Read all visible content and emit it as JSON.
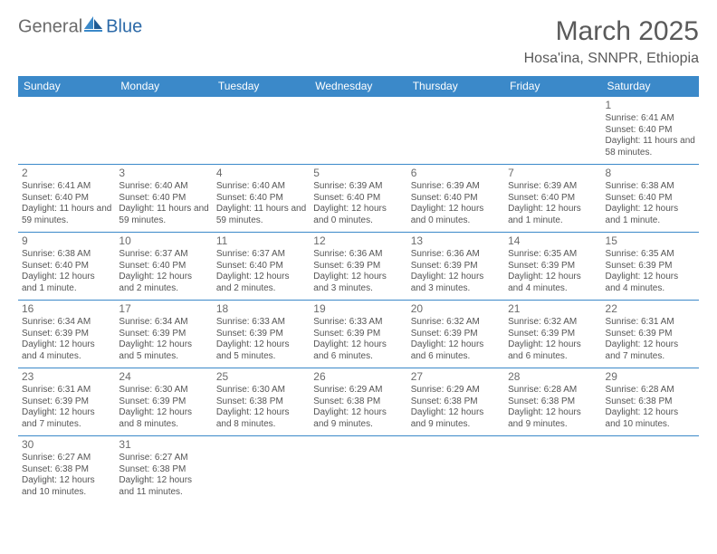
{
  "logo": {
    "text_gray": "General",
    "text_blue": "Blue"
  },
  "header": {
    "month": "March 2025",
    "location": "Hosa'ina, SNNPR, Ethiopia"
  },
  "colors": {
    "header_bg": "#3b89c9",
    "border": "#3b89c9",
    "text": "#555555"
  },
  "day_headers": [
    "Sunday",
    "Monday",
    "Tuesday",
    "Wednesday",
    "Thursday",
    "Friday",
    "Saturday"
  ],
  "weeks": [
    [
      null,
      null,
      null,
      null,
      null,
      null,
      {
        "n": "1",
        "sr": "Sunrise: 6:41 AM",
        "ss": "Sunset: 6:40 PM",
        "dl": "Daylight: 11 hours and 58 minutes."
      }
    ],
    [
      {
        "n": "2",
        "sr": "Sunrise: 6:41 AM",
        "ss": "Sunset: 6:40 PM",
        "dl": "Daylight: 11 hours and 59 minutes."
      },
      {
        "n": "3",
        "sr": "Sunrise: 6:40 AM",
        "ss": "Sunset: 6:40 PM",
        "dl": "Daylight: 11 hours and 59 minutes."
      },
      {
        "n": "4",
        "sr": "Sunrise: 6:40 AM",
        "ss": "Sunset: 6:40 PM",
        "dl": "Daylight: 11 hours and 59 minutes."
      },
      {
        "n": "5",
        "sr": "Sunrise: 6:39 AM",
        "ss": "Sunset: 6:40 PM",
        "dl": "Daylight: 12 hours and 0 minutes."
      },
      {
        "n": "6",
        "sr": "Sunrise: 6:39 AM",
        "ss": "Sunset: 6:40 PM",
        "dl": "Daylight: 12 hours and 0 minutes."
      },
      {
        "n": "7",
        "sr": "Sunrise: 6:39 AM",
        "ss": "Sunset: 6:40 PM",
        "dl": "Daylight: 12 hours and 1 minute."
      },
      {
        "n": "8",
        "sr": "Sunrise: 6:38 AM",
        "ss": "Sunset: 6:40 PM",
        "dl": "Daylight: 12 hours and 1 minute."
      }
    ],
    [
      {
        "n": "9",
        "sr": "Sunrise: 6:38 AM",
        "ss": "Sunset: 6:40 PM",
        "dl": "Daylight: 12 hours and 1 minute."
      },
      {
        "n": "10",
        "sr": "Sunrise: 6:37 AM",
        "ss": "Sunset: 6:40 PM",
        "dl": "Daylight: 12 hours and 2 minutes."
      },
      {
        "n": "11",
        "sr": "Sunrise: 6:37 AM",
        "ss": "Sunset: 6:40 PM",
        "dl": "Daylight: 12 hours and 2 minutes."
      },
      {
        "n": "12",
        "sr": "Sunrise: 6:36 AM",
        "ss": "Sunset: 6:39 PM",
        "dl": "Daylight: 12 hours and 3 minutes."
      },
      {
        "n": "13",
        "sr": "Sunrise: 6:36 AM",
        "ss": "Sunset: 6:39 PM",
        "dl": "Daylight: 12 hours and 3 minutes."
      },
      {
        "n": "14",
        "sr": "Sunrise: 6:35 AM",
        "ss": "Sunset: 6:39 PM",
        "dl": "Daylight: 12 hours and 4 minutes."
      },
      {
        "n": "15",
        "sr": "Sunrise: 6:35 AM",
        "ss": "Sunset: 6:39 PM",
        "dl": "Daylight: 12 hours and 4 minutes."
      }
    ],
    [
      {
        "n": "16",
        "sr": "Sunrise: 6:34 AM",
        "ss": "Sunset: 6:39 PM",
        "dl": "Daylight: 12 hours and 4 minutes."
      },
      {
        "n": "17",
        "sr": "Sunrise: 6:34 AM",
        "ss": "Sunset: 6:39 PM",
        "dl": "Daylight: 12 hours and 5 minutes."
      },
      {
        "n": "18",
        "sr": "Sunrise: 6:33 AM",
        "ss": "Sunset: 6:39 PM",
        "dl": "Daylight: 12 hours and 5 minutes."
      },
      {
        "n": "19",
        "sr": "Sunrise: 6:33 AM",
        "ss": "Sunset: 6:39 PM",
        "dl": "Daylight: 12 hours and 6 minutes."
      },
      {
        "n": "20",
        "sr": "Sunrise: 6:32 AM",
        "ss": "Sunset: 6:39 PM",
        "dl": "Daylight: 12 hours and 6 minutes."
      },
      {
        "n": "21",
        "sr": "Sunrise: 6:32 AM",
        "ss": "Sunset: 6:39 PM",
        "dl": "Daylight: 12 hours and 6 minutes."
      },
      {
        "n": "22",
        "sr": "Sunrise: 6:31 AM",
        "ss": "Sunset: 6:39 PM",
        "dl": "Daylight: 12 hours and 7 minutes."
      }
    ],
    [
      {
        "n": "23",
        "sr": "Sunrise: 6:31 AM",
        "ss": "Sunset: 6:39 PM",
        "dl": "Daylight: 12 hours and 7 minutes."
      },
      {
        "n": "24",
        "sr": "Sunrise: 6:30 AM",
        "ss": "Sunset: 6:39 PM",
        "dl": "Daylight: 12 hours and 8 minutes."
      },
      {
        "n": "25",
        "sr": "Sunrise: 6:30 AM",
        "ss": "Sunset: 6:38 PM",
        "dl": "Daylight: 12 hours and 8 minutes."
      },
      {
        "n": "26",
        "sr": "Sunrise: 6:29 AM",
        "ss": "Sunset: 6:38 PM",
        "dl": "Daylight: 12 hours and 9 minutes."
      },
      {
        "n": "27",
        "sr": "Sunrise: 6:29 AM",
        "ss": "Sunset: 6:38 PM",
        "dl": "Daylight: 12 hours and 9 minutes."
      },
      {
        "n": "28",
        "sr": "Sunrise: 6:28 AM",
        "ss": "Sunset: 6:38 PM",
        "dl": "Daylight: 12 hours and 9 minutes."
      },
      {
        "n": "29",
        "sr": "Sunrise: 6:28 AM",
        "ss": "Sunset: 6:38 PM",
        "dl": "Daylight: 12 hours and 10 minutes."
      }
    ],
    [
      {
        "n": "30",
        "sr": "Sunrise: 6:27 AM",
        "ss": "Sunset: 6:38 PM",
        "dl": "Daylight: 12 hours and 10 minutes."
      },
      {
        "n": "31",
        "sr": "Sunrise: 6:27 AM",
        "ss": "Sunset: 6:38 PM",
        "dl": "Daylight: 12 hours and 11 minutes."
      },
      null,
      null,
      null,
      null,
      null
    ]
  ]
}
